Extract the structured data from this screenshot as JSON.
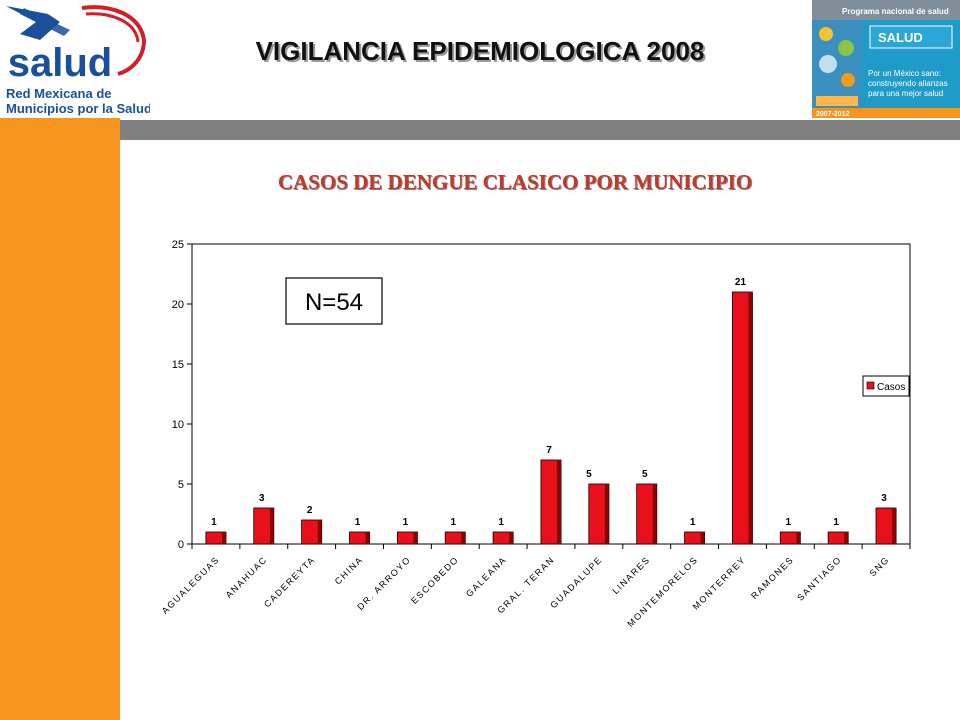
{
  "header": {
    "title": "VIGILANCIA EPIDEMIOLOGICA 2008"
  },
  "logo_left": {
    "brand": "salud",
    "line1": "Red Mexicana de",
    "line2": "Municipios por la Salud"
  },
  "logo_right": {
    "heading": "Programa nacional de salud",
    "brand": "SALUD",
    "slogan1": "Por un México sano:",
    "slogan2": "construyendo alianzas",
    "slogan3": "para una mejor salud",
    "years": "2007-2012"
  },
  "colors": {
    "sidebar": "#f7941d",
    "bar": "#e8101a",
    "title_red": "#c0392b",
    "gray_band": "#808080",
    "logo_blue": "#1b4f9c",
    "logo_red": "#d21f26",
    "logo_right_teal": "#1e9bc8"
  },
  "chart_data": {
    "type": "bar",
    "title": "CASOS DE DENGUE CLASICO POR MUNICIPIO",
    "annotation": "N=54",
    "categories": [
      "AGUALEGUAS",
      "ANAHUAC",
      "CADEREYTA",
      "CHINA",
      "DR. ARROYO",
      "ESCOBEDO",
      "GALEANA",
      "GRAL. TERAN",
      "GUADALUPE",
      "LINARES",
      "MONTEMORELOS",
      "MONTERREY",
      "RAMONES",
      "SANTIAGO",
      "SNG"
    ],
    "series": [
      {
        "name": "Casos",
        "values": [
          1,
          3,
          2,
          1,
          1,
          1,
          1,
          7,
          5,
          5,
          1,
          21,
          1,
          1,
          3
        ]
      }
    ],
    "ylim": [
      0,
      25
    ],
    "yticks": [
      0,
      5,
      10,
      15,
      20,
      25
    ],
    "legend": "right",
    "grid": false
  }
}
